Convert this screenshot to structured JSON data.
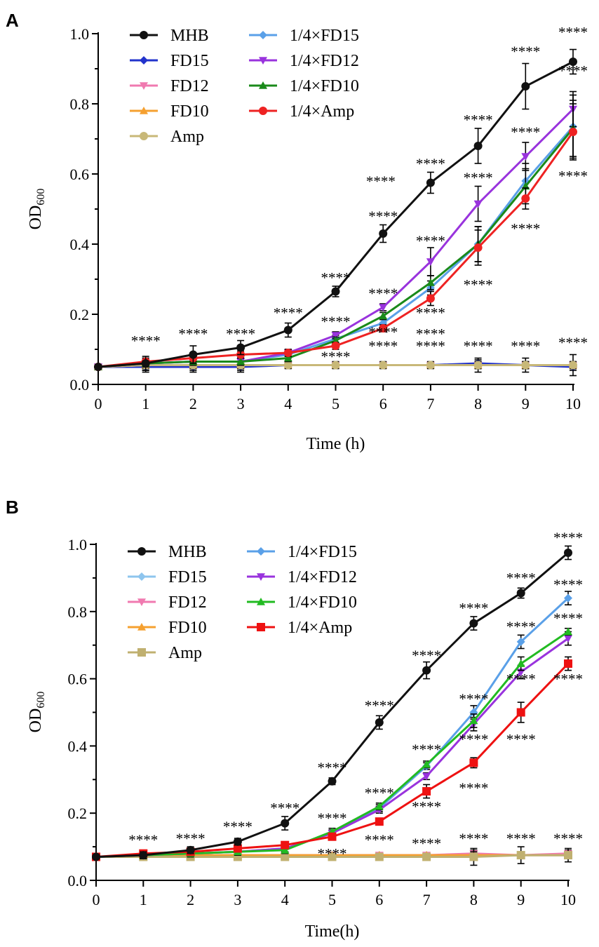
{
  "chart_data": [
    {
      "type": "line",
      "panel": "A",
      "xlabel": "Time (h)",
      "ylabel": "OD",
      "ylabel_sub": "600",
      "xlim": [
        0,
        10
      ],
      "ylim": [
        0,
        1.0
      ],
      "xticks": [
        "0",
        "1",
        "2",
        "3",
        "4",
        "5",
        "6",
        "7",
        "8",
        "9",
        "10"
      ],
      "yticks": [
        "0.0",
        "0.2",
        "0.4",
        "0.6",
        "0.8",
        "1.0"
      ],
      "x": [
        0,
        1,
        2,
        3,
        4,
        5,
        6,
        7,
        8,
        9,
        10
      ],
      "series": [
        {
          "name": "FD15",
          "color": "#2233cc",
          "marker": "diamond",
          "values": [
            0.05,
            0.05,
            0.05,
            0.05,
            0.055,
            0.055,
            0.055,
            0.055,
            0.06,
            0.055,
            0.05
          ],
          "errors": [
            0.005,
            0.01,
            0.01,
            0.01,
            0.005,
            0.005,
            0.005,
            0.005,
            0.01,
            0.01,
            0.01
          ]
        },
        {
          "name": "FD12",
          "color": "#f07ab0",
          "marker": "triangle-down",
          "values": [
            0.05,
            0.055,
            0.055,
            0.055,
            0.055,
            0.055,
            0.055,
            0.055,
            0.055,
            0.055,
            0.055
          ],
          "errors": [
            0.005,
            0.01,
            0.01,
            0.01,
            0.005,
            0.005,
            0.005,
            0.005,
            0.01,
            0.01,
            0.01
          ]
        },
        {
          "name": "FD10",
          "color": "#f5a030",
          "marker": "triangle",
          "values": [
            0.05,
            0.055,
            0.055,
            0.055,
            0.055,
            0.055,
            0.055,
            0.055,
            0.055,
            0.055,
            0.055
          ],
          "errors": [
            0.005,
            0.01,
            0.01,
            0.01,
            0.005,
            0.005,
            0.005,
            0.005,
            0.01,
            0.01,
            0.01
          ]
        },
        {
          "name": "Amp",
          "color": "#c8b878",
          "marker": "circle",
          "values": [
            0.05,
            0.055,
            0.055,
            0.055,
            0.055,
            0.055,
            0.055,
            0.055,
            0.055,
            0.055,
            0.055
          ],
          "errors": [
            0.005,
            0.02,
            0.02,
            0.02,
            0.01,
            0.01,
            0.01,
            0.01,
            0.02,
            0.02,
            0.03
          ]
        },
        {
          "name": "1/4×FD15",
          "color": "#5aa0e8",
          "marker": "diamond",
          "values": [
            0.05,
            0.06,
            0.065,
            0.065,
            0.085,
            0.13,
            0.175,
            0.275,
            0.4,
            0.58,
            0.735
          ],
          "errors": [
            0.005,
            0.01,
            0.01,
            0.01,
            0.01,
            0.01,
            0.01,
            0.02,
            0.05,
            0.05,
            0.09
          ]
        },
        {
          "name": "1/4×FD12",
          "color": "#9933dd",
          "marker": "triangle-down",
          "values": [
            0.05,
            0.06,
            0.065,
            0.065,
            0.09,
            0.14,
            0.22,
            0.35,
            0.515,
            0.65,
            0.785
          ],
          "errors": [
            0.005,
            0.01,
            0.01,
            0.01,
            0.01,
            0.01,
            0.01,
            0.04,
            0.05,
            0.04,
            0.05
          ]
        },
        {
          "name": "1/4×FD10",
          "color": "#1a8a1a",
          "marker": "triangle",
          "values": [
            0.05,
            0.06,
            0.065,
            0.065,
            0.075,
            0.125,
            0.195,
            0.29,
            0.4,
            0.565,
            0.73
          ],
          "errors": [
            0.005,
            0.01,
            0.01,
            0.01,
            0.01,
            0.01,
            0.01,
            0.02,
            0.05,
            0.05,
            0.08
          ]
        },
        {
          "name": "1/4×Amp",
          "color": "#ee2222",
          "marker": "circle",
          "values": [
            0.05,
            0.065,
            0.075,
            0.085,
            0.09,
            0.11,
            0.16,
            0.245,
            0.39,
            0.53,
            0.72
          ],
          "errors": [
            0.005,
            0.01,
            0.01,
            0.01,
            0.01,
            0.01,
            0.01,
            0.02,
            0.05,
            0.03,
            0.08
          ]
        },
        {
          "name": "MHB",
          "color": "#111111",
          "marker": "circle",
          "values": [
            0.05,
            0.06,
            0.085,
            0.105,
            0.155,
            0.265,
            0.43,
            0.575,
            0.68,
            0.85,
            0.92
          ],
          "errors": [
            0.005,
            0.02,
            0.025,
            0.02,
            0.02,
            0.015,
            0.025,
            0.03,
            0.05,
            0.065,
            0.035
          ]
        }
      ],
      "legend": {
        "columns": [
          [
            "MHB",
            "FD15",
            "FD12",
            "FD10",
            "Amp"
          ],
          [
            "1/4×FD15",
            "1/4×FD12",
            "1/4×FD10",
            "1/4×Amp"
          ]
        ],
        "placement": "top-left"
      },
      "annotations": [
        {
          "text": "****",
          "x": 1,
          "y": 0.11
        },
        {
          "text": "****",
          "x": 2,
          "y": 0.13
        },
        {
          "text": "****",
          "x": 3,
          "y": 0.13
        },
        {
          "text": "****",
          "x": 4,
          "y": 0.19
        },
        {
          "text": "****",
          "x": 5,
          "y": 0.29
        },
        {
          "text": "****",
          "x": 6,
          "y": 0.465
        },
        {
          "text": "****",
          "x": 7,
          "y": 0.615
        },
        {
          "text": "****",
          "x": 8,
          "y": 0.74
        },
        {
          "text": "****",
          "x": 9,
          "y": 0.935
        },
        {
          "text": "****",
          "x": 10,
          "y": 0.99
        },
        {
          "text": "****",
          "x": 5,
          "y": 0.165
        },
        {
          "text": "****",
          "x": 6,
          "y": 0.245
        },
        {
          "text": "****",
          "x": 7,
          "y": 0.395
        },
        {
          "text": "****",
          "x": 8,
          "y": 0.575
        },
        {
          "text": "****",
          "x": 9,
          "y": 0.705
        },
        {
          "text": "****",
          "x": 10,
          "y": 0.88
        },
        {
          "text": "****",
          "x": 5.95,
          "y": 0.565
        },
        {
          "text": "****",
          "x": 6,
          "y": 0.135
        },
        {
          "text": "****",
          "x": 7,
          "y": 0.19
        },
        {
          "text": "****",
          "x": 8,
          "y": 0.27
        },
        {
          "text": "****",
          "x": 9,
          "y": 0.43
        },
        {
          "text": "****",
          "x": 10,
          "y": 0.58
        },
        {
          "text": "****",
          "x": 7,
          "y": 0.13
        },
        {
          "text": "****",
          "x": 8,
          "y": 0.095
        },
        {
          "text": "****",
          "x": 9,
          "y": 0.095
        },
        {
          "text": "****",
          "x": 10,
          "y": 0.105
        },
        {
          "text": "****",
          "x": 6,
          "y": 0.095
        },
        {
          "text": "****",
          "x": 7,
          "y": 0.095
        },
        {
          "text": "****",
          "x": 5,
          "y": 0.065
        }
      ]
    },
    {
      "type": "line",
      "panel": "B",
      "xlabel": "Time(h)",
      "ylabel": "OD",
      "ylabel_sub": "600",
      "xlim": [
        0,
        10
      ],
      "ylim": [
        0,
        1.0
      ],
      "xticks": [
        "0",
        "1",
        "2",
        "3",
        "4",
        "5",
        "6",
        "7",
        "8",
        "9",
        "10"
      ],
      "yticks": [
        "0.0",
        "0.2",
        "0.4",
        "0.6",
        "0.8",
        "1.0"
      ],
      "x": [
        0,
        1,
        2,
        3,
        4,
        5,
        6,
        7,
        8,
        9,
        10
      ],
      "series": [
        {
          "name": "FD15",
          "color": "#8ec5ee",
          "marker": "diamond",
          "values": [
            0.07,
            0.07,
            0.075,
            0.075,
            0.075,
            0.075,
            0.075,
            0.075,
            0.075,
            0.075,
            0.075
          ],
          "errors": [
            0.005,
            0.01,
            0.01,
            0.01,
            0.005,
            0.005,
            0.005,
            0.005,
            0.01,
            0.01,
            0.01
          ]
        },
        {
          "name": "FD12",
          "color": "#f07ab0",
          "marker": "triangle-down",
          "values": [
            0.07,
            0.07,
            0.075,
            0.075,
            0.075,
            0.075,
            0.075,
            0.075,
            0.08,
            0.075,
            0.08
          ],
          "errors": [
            0.005,
            0.01,
            0.01,
            0.01,
            0.005,
            0.005,
            0.005,
            0.005,
            0.01,
            0.01,
            0.01
          ]
        },
        {
          "name": "FD10",
          "color": "#f5a030",
          "marker": "triangle",
          "values": [
            0.07,
            0.07,
            0.075,
            0.075,
            0.075,
            0.075,
            0.075,
            0.075,
            0.075,
            0.075,
            0.075
          ],
          "errors": [
            0.005,
            0.01,
            0.01,
            0.01,
            0.005,
            0.005,
            0.005,
            0.005,
            0.01,
            0.01,
            0.01
          ]
        },
        {
          "name": "Amp",
          "color": "#c0b070",
          "marker": "square",
          "values": [
            0.07,
            0.07,
            0.07,
            0.07,
            0.07,
            0.07,
            0.07,
            0.07,
            0.07,
            0.075,
            0.075
          ],
          "errors": [
            0.005,
            0.01,
            0.01,
            0.01,
            0.005,
            0.005,
            0.005,
            0.005,
            0.025,
            0.025,
            0.02
          ]
        },
        {
          "name": "1/4×FD15",
          "color": "#5aa0e8",
          "marker": "diamond",
          "values": [
            0.07,
            0.075,
            0.08,
            0.085,
            0.095,
            0.14,
            0.215,
            0.34,
            0.5,
            0.71,
            0.84
          ],
          "errors": [
            0.005,
            0.01,
            0.01,
            0.01,
            0.01,
            0.01,
            0.01,
            0.01,
            0.02,
            0.02,
            0.02
          ]
        },
        {
          "name": "1/4×FD12",
          "color": "#9933dd",
          "marker": "triangle-down",
          "values": [
            0.07,
            0.075,
            0.08,
            0.085,
            0.095,
            0.14,
            0.21,
            0.31,
            0.465,
            0.62,
            0.72
          ],
          "errors": [
            0.005,
            0.01,
            0.01,
            0.01,
            0.01,
            0.01,
            0.01,
            0.01,
            0.02,
            0.02,
            0.02
          ]
        },
        {
          "name": "1/4×FD10",
          "color": "#22bb22",
          "marker": "triangle",
          "values": [
            0.07,
            0.075,
            0.08,
            0.085,
            0.09,
            0.145,
            0.22,
            0.345,
            0.475,
            0.645,
            0.74
          ],
          "errors": [
            0.005,
            0.01,
            0.01,
            0.01,
            0.01,
            0.01,
            0.01,
            0.01,
            0.02,
            0.02,
            0.01
          ]
        },
        {
          "name": "1/4×Amp",
          "color": "#ee1111",
          "marker": "square",
          "values": [
            0.07,
            0.08,
            0.085,
            0.095,
            0.105,
            0.13,
            0.175,
            0.265,
            0.35,
            0.5,
            0.645
          ],
          "errors": [
            0.005,
            0.01,
            0.01,
            0.01,
            0.01,
            0.01,
            0.01,
            0.02,
            0.015,
            0.03,
            0.02
          ]
        },
        {
          "name": "MHB",
          "color": "#111111",
          "marker": "circle",
          "values": [
            0.07,
            0.075,
            0.09,
            0.115,
            0.17,
            0.295,
            0.47,
            0.625,
            0.765,
            0.855,
            0.975
          ],
          "errors": [
            0.005,
            0.01,
            0.01,
            0.01,
            0.02,
            0.01,
            0.02,
            0.025,
            0.02,
            0.015,
            0.02
          ]
        }
      ],
      "legend": {
        "columns": [
          [
            "MHB",
            "FD15",
            "FD12",
            "FD10",
            "Amp"
          ],
          [
            "1/4×FD15",
            "1/4×FD12",
            "1/4×FD10",
            "1/4×Amp"
          ]
        ],
        "placement": "top-left"
      },
      "annotations": [
        {
          "text": "****",
          "x": 1,
          "y": 0.105
        },
        {
          "text": "****",
          "x": 2,
          "y": 0.11
        },
        {
          "text": "****",
          "x": 3,
          "y": 0.145
        },
        {
          "text": "****",
          "x": 4,
          "y": 0.2
        },
        {
          "text": "****",
          "x": 5,
          "y": 0.32
        },
        {
          "text": "****",
          "x": 6,
          "y": 0.505
        },
        {
          "text": "****",
          "x": 7,
          "y": 0.655
        },
        {
          "text": "****",
          "x": 8,
          "y": 0.795
        },
        {
          "text": "****",
          "x": 9,
          "y": 0.885
        },
        {
          "text": "****",
          "x": 10,
          "y": 1.005
        },
        {
          "text": "****",
          "x": 5,
          "y": 0.17
        },
        {
          "text": "****",
          "x": 6,
          "y": 0.245
        },
        {
          "text": "****",
          "x": 7,
          "y": 0.375
        },
        {
          "text": "****",
          "x": 8,
          "y": 0.525
        },
        {
          "text": "****",
          "x": 9,
          "y": 0.74
        },
        {
          "text": "****",
          "x": 10,
          "y": 0.865
        },
        {
          "text": "****",
          "x": 10,
          "y": 0.765
        },
        {
          "text": "****",
          "x": 8,
          "y": 0.405
        },
        {
          "text": "****",
          "x": 9,
          "y": 0.585
        },
        {
          "text": "****",
          "x": 7,
          "y": 0.205
        },
        {
          "text": "****",
          "x": 8,
          "y": 0.26
        },
        {
          "text": "****",
          "x": 9,
          "y": 0.405
        },
        {
          "text": "****",
          "x": 10,
          "y": 0.585
        },
        {
          "text": "****",
          "x": 5,
          "y": 0.065
        },
        {
          "text": "****",
          "x": 6,
          "y": 0.105
        },
        {
          "text": "****",
          "x": 7,
          "y": 0.095
        },
        {
          "text": "****",
          "x": 8,
          "y": 0.11
        },
        {
          "text": "****",
          "x": 9,
          "y": 0.11
        },
        {
          "text": "****",
          "x": 10,
          "y": 0.11
        }
      ]
    }
  ]
}
